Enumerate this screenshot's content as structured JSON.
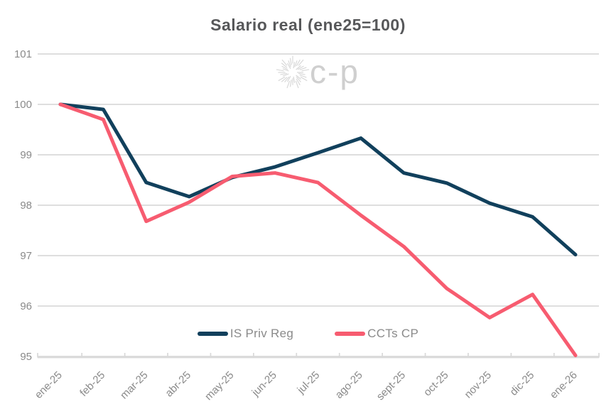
{
  "title": "Salario real (ene25=100)",
  "watermark": {
    "icon": "sunburst-icon",
    "text": "c-p"
  },
  "legend": {
    "items": [
      {
        "label": "IS Priv Reg"
      },
      {
        "label": "CCTs CP"
      }
    ]
  },
  "colors": {
    "series_dark": "#11405c",
    "series_pink": "#f75c70",
    "grid": "#d9d9d9",
    "axis_text": "#8a8a8a",
    "title_text": "#57585a",
    "watermark": "#cfcfcf"
  },
  "chart_data": {
    "type": "line",
    "title": "Salario real (ene25=100)",
    "categories": [
      "ene-25",
      "feb-25",
      "mar-25",
      "abr-25",
      "may-25",
      "jun-25",
      "jul-25",
      "ago-25",
      "sept-25",
      "oct-25",
      "nov-25",
      "dic-25",
      "ene-26"
    ],
    "series": [
      {
        "name": "IS Priv Reg",
        "color": "#11405c",
        "values": [
          100.0,
          99.9,
          98.45,
          98.17,
          98.55,
          98.76,
          99.04,
          99.33,
          98.64,
          98.44,
          98.04,
          97.77,
          97.02
        ]
      },
      {
        "name": "CCTs CP",
        "color": "#f75c70",
        "values": [
          100.0,
          99.7,
          97.68,
          98.06,
          98.57,
          98.64,
          98.45,
          97.8,
          97.18,
          96.35,
          95.77,
          96.23,
          95.02
        ]
      }
    ],
    "xlabel": "",
    "ylabel": "",
    "ylim": [
      95,
      101
    ],
    "yticks": [
      95,
      96,
      97,
      98,
      99,
      100,
      101
    ],
    "grid": "horizontal",
    "legend_position": "bottom-center",
    "x_tick_rotation": 45
  }
}
